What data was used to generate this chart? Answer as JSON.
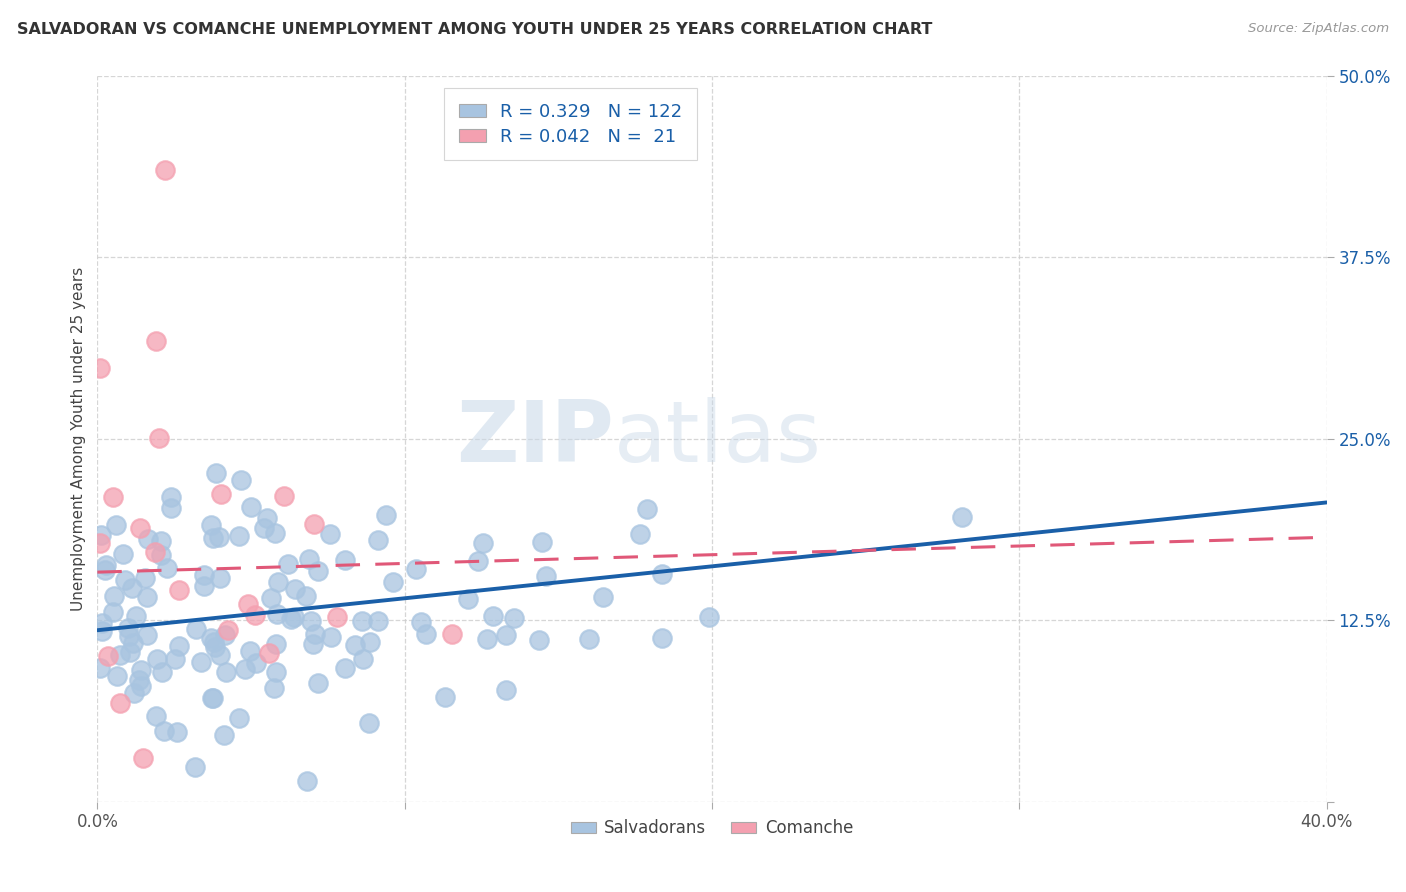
{
  "title": "SALVADORAN VS COMANCHE UNEMPLOYMENT AMONG YOUTH UNDER 25 YEARS CORRELATION CHART",
  "source": "Source: ZipAtlas.com",
  "ylabel": "Unemployment Among Youth under 25 years",
  "x_min": 0.0,
  "x_max": 0.4,
  "y_min": 0.0,
  "y_max": 0.5,
  "y_ticks": [
    0.0,
    0.125,
    0.25,
    0.375,
    0.5
  ],
  "y_tick_labels": [
    "",
    "12.5%",
    "25.0%",
    "37.5%",
    "50.0%"
  ],
  "salvadoran_color": "#a8c4e0",
  "comanche_color": "#f4a0b0",
  "trendline_salvadoran_color": "#1a5fa8",
  "trendline_comanche_color": "#e05878",
  "R_salvadoran": 0.329,
  "N_salvadoran": 122,
  "R_comanche": 0.042,
  "N_comanche": 21,
  "watermark_zip": "ZIP",
  "watermark_atlas": "atlas",
  "legend_salvadoran": "Salvadorans",
  "legend_comanche": "Comanche",
  "sal_intercept": 0.118,
  "sal_slope": 0.22,
  "com_intercept": 0.158,
  "com_slope": 0.06
}
